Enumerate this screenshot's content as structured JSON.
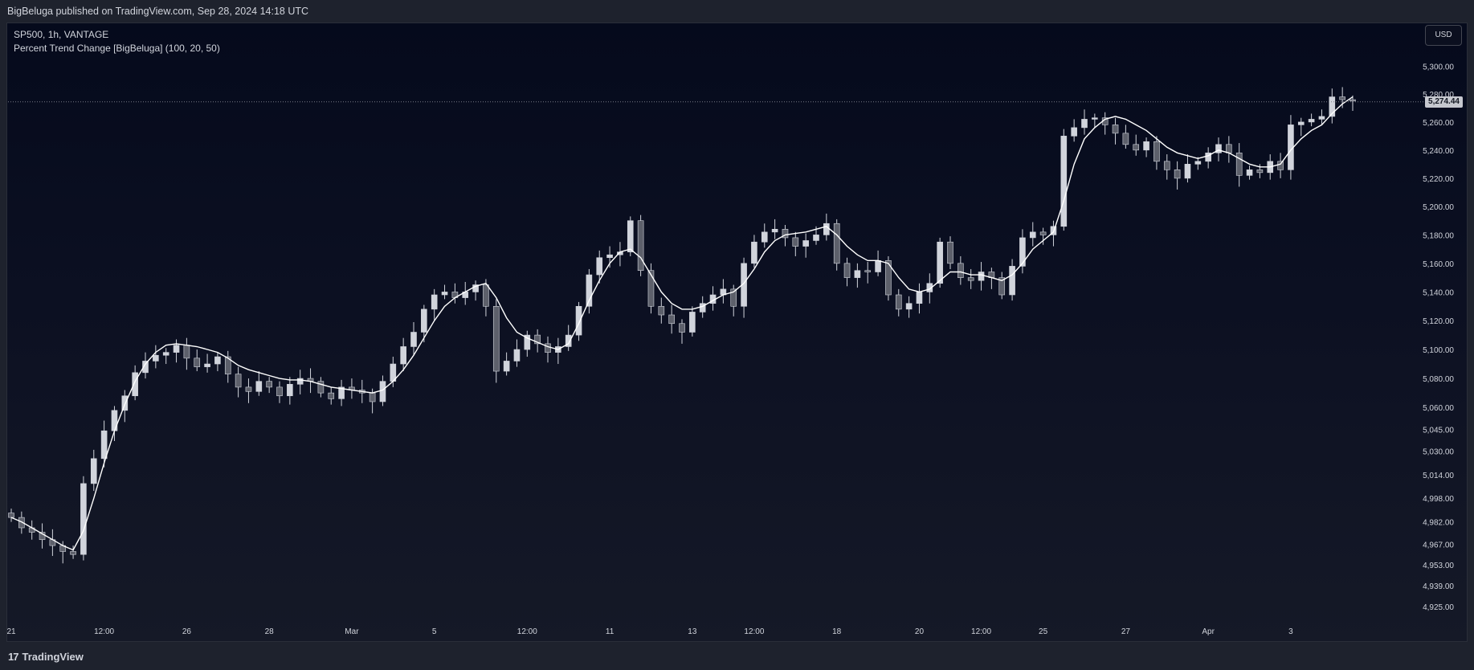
{
  "header": {
    "published_text": "BigBeluga published on TradingView.com, Sep 28, 2024 14:18 UTC"
  },
  "legend": {
    "symbol_line": "SP500, 1h, VANTAGE",
    "indicator_line": "Percent Trend Change [BigBeluga] (100, 20, 50)"
  },
  "currency_button": "USD",
  "last_price_label": "5,274.44",
  "footer": {
    "logo_mark": "17",
    "logo_name": "TradingView"
  },
  "colors": {
    "background_top": "#050a1c",
    "background_bottom": "#151927",
    "candle": "#d1d4dc",
    "trend_line": "#ffffff",
    "price_line": "#787b86",
    "price_tag_bg": "#c6c8cf"
  },
  "chart_data": {
    "type": "line",
    "title": "SP500, 1h, VANTAGE",
    "y_tick_labels": [
      "5,300.00",
      "5,280.00",
      "5,260.00",
      "5,240.00",
      "5,220.00",
      "5,200.00",
      "5,180.00",
      "5,160.00",
      "5,140.00",
      "5,120.00",
      "5,100.00",
      "5,080.00",
      "5,060.00",
      "5,045.00",
      "5,030.00",
      "5,014.00",
      "4,998.00",
      "4,982.00",
      "4,967.00",
      "4,953.00",
      "4,939.00",
      "4,925.00"
    ],
    "y_ticks": [
      5300,
      5280,
      5260,
      5240,
      5220,
      5200,
      5180,
      5160,
      5140,
      5120,
      5100,
      5080,
      5060,
      5045,
      5030,
      5014,
      4998,
      4982,
      4967,
      4953,
      4939,
      4925
    ],
    "x_tick_labels": [
      "21",
      "12:00",
      "26",
      "28",
      "Mar",
      "5",
      "12:00",
      "11",
      "13",
      "12:00",
      "18",
      "20",
      "12:00",
      "25",
      "27",
      "Apr",
      "3"
    ],
    "x_tick_index": [
      0,
      9,
      17,
      25,
      33,
      41,
      50,
      58,
      66,
      72,
      80,
      88,
      94,
      100,
      108,
      116,
      124
    ],
    "ylim": [
      4917,
      5313
    ],
    "scale": "log",
    "last_price": 5274.44,
    "series": [
      {
        "name": "SP500",
        "style": "candles",
        "values": [
          4985,
          4978,
          4975,
          4970,
          4966,
          4962,
          4960,
          5008,
          5025,
          5044,
          5058,
          5068,
          5084,
          5092,
          5096,
          5098,
          5103,
          5094,
          5088,
          5090,
          5095,
          5083,
          5074,
          5071,
          5078,
          5074,
          5068,
          5076,
          5080,
          5078,
          5070,
          5066,
          5074,
          5072,
          5070,
          5064,
          5078,
          5090,
          5102,
          5112,
          5128,
          5138,
          5140,
          5136,
          5140,
          5145,
          5130,
          5085,
          5092,
          5100,
          5110,
          5104,
          5098,
          5102,
          5110,
          5130,
          5152,
          5164,
          5166,
          5168,
          5190,
          5155,
          5130,
          5124,
          5118,
          5112,
          5126,
          5132,
          5138,
          5142,
          5130,
          5160,
          5175,
          5182,
          5184,
          5178,
          5172,
          5176,
          5180,
          5188,
          5160,
          5150,
          5155,
          5154,
          5162,
          5138,
          5128,
          5132,
          5140,
          5146,
          5175,
          5160,
          5150,
          5148,
          5154,
          5150,
          5138,
          5158,
          5178,
          5182,
          5180,
          5186,
          5250,
          5256,
          5262,
          5263,
          5258,
          5252,
          5244,
          5240,
          5246,
          5232,
          5226,
          5220,
          5230,
          5232,
          5238,
          5244,
          5238,
          5222,
          5226,
          5224,
          5232,
          5226,
          5258,
          5260,
          5262,
          5264,
          5278,
          5276,
          5275
        ]
      },
      {
        "name": "Percent Trend Change",
        "style": "line",
        "values": [
          4985,
          4982,
          4978,
          4974,
          4970,
          4966,
          4963,
          4976,
          4998,
          5022,
          5044,
          5062,
          5078,
          5090,
          5098,
          5103,
          5104,
          5103,
          5102,
          5100,
          5098,
          5094,
          5089,
          5086,
          5084,
          5082,
          5080,
          5079,
          5079,
          5078,
          5076,
          5074,
          5073,
          5072,
          5071,
          5070,
          5072,
          5078,
          5086,
          5096,
          5108,
          5120,
          5130,
          5136,
          5140,
          5144,
          5146,
          5136,
          5122,
          5112,
          5108,
          5105,
          5102,
          5100,
          5104,
          5118,
          5134,
          5148,
          5160,
          5168,
          5170,
          5164,
          5152,
          5140,
          5132,
          5128,
          5128,
          5130,
          5134,
          5138,
          5140,
          5146,
          5156,
          5168,
          5176,
          5180,
          5181,
          5182,
          5184,
          5186,
          5180,
          5172,
          5166,
          5162,
          5162,
          5160,
          5150,
          5142,
          5140,
          5142,
          5148,
          5154,
          5154,
          5152,
          5152,
          5150,
          5148,
          5152,
          5160,
          5170,
          5176,
          5182,
          5204,
          5230,
          5248,
          5256,
          5262,
          5264,
          5262,
          5258,
          5254,
          5248,
          5242,
          5238,
          5236,
          5234,
          5236,
          5240,
          5238,
          5234,
          5230,
          5228,
          5228,
          5230,
          5240,
          5248,
          5254,
          5258,
          5266,
          5273,
          5278
        ]
      }
    ]
  }
}
